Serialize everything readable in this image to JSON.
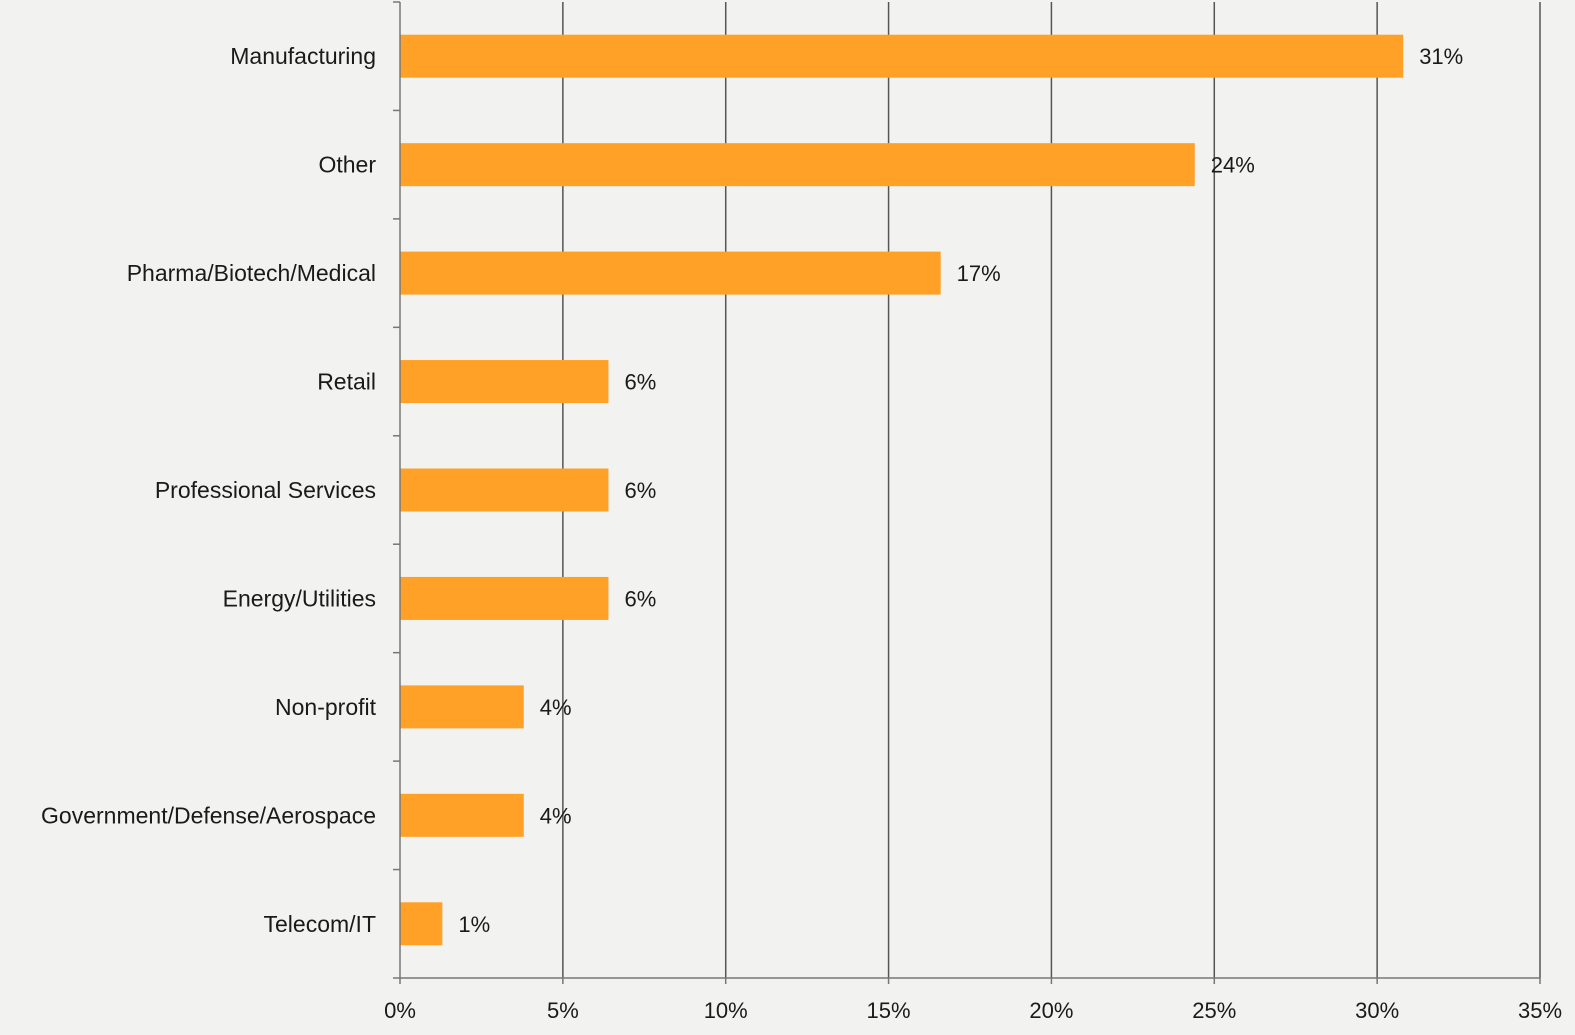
{
  "chart_data": {
    "type": "bar",
    "orientation": "horizontal",
    "categories": [
      "Manufacturing",
      "Other",
      "Pharma/Biotech/Medical",
      "Retail",
      "Professional Services",
      "Energy/Utilities",
      "Non-profit",
      "Government/Defense/Aerospace",
      "Telecom/IT"
    ],
    "values": [
      30.8,
      24.4,
      16.6,
      6.4,
      6.4,
      6.4,
      3.8,
      3.8,
      1.3
    ],
    "data_labels": [
      "31%",
      "24%",
      "17%",
      "6%",
      "6%",
      "6%",
      "4%",
      "4%",
      "1%"
    ],
    "xlim": [
      0,
      35
    ],
    "xticks": [
      0,
      5,
      10,
      15,
      20,
      25,
      30,
      35
    ],
    "xtick_labels": [
      "0%",
      "5%",
      "10%",
      "15%",
      "20%",
      "25%",
      "30%",
      "35%"
    ],
    "grid": "vertical",
    "legend": "none",
    "colors": {
      "bar": "#ffa126",
      "grid": "#555555",
      "axis": "#777777",
      "background": "#f2f2f0"
    }
  }
}
